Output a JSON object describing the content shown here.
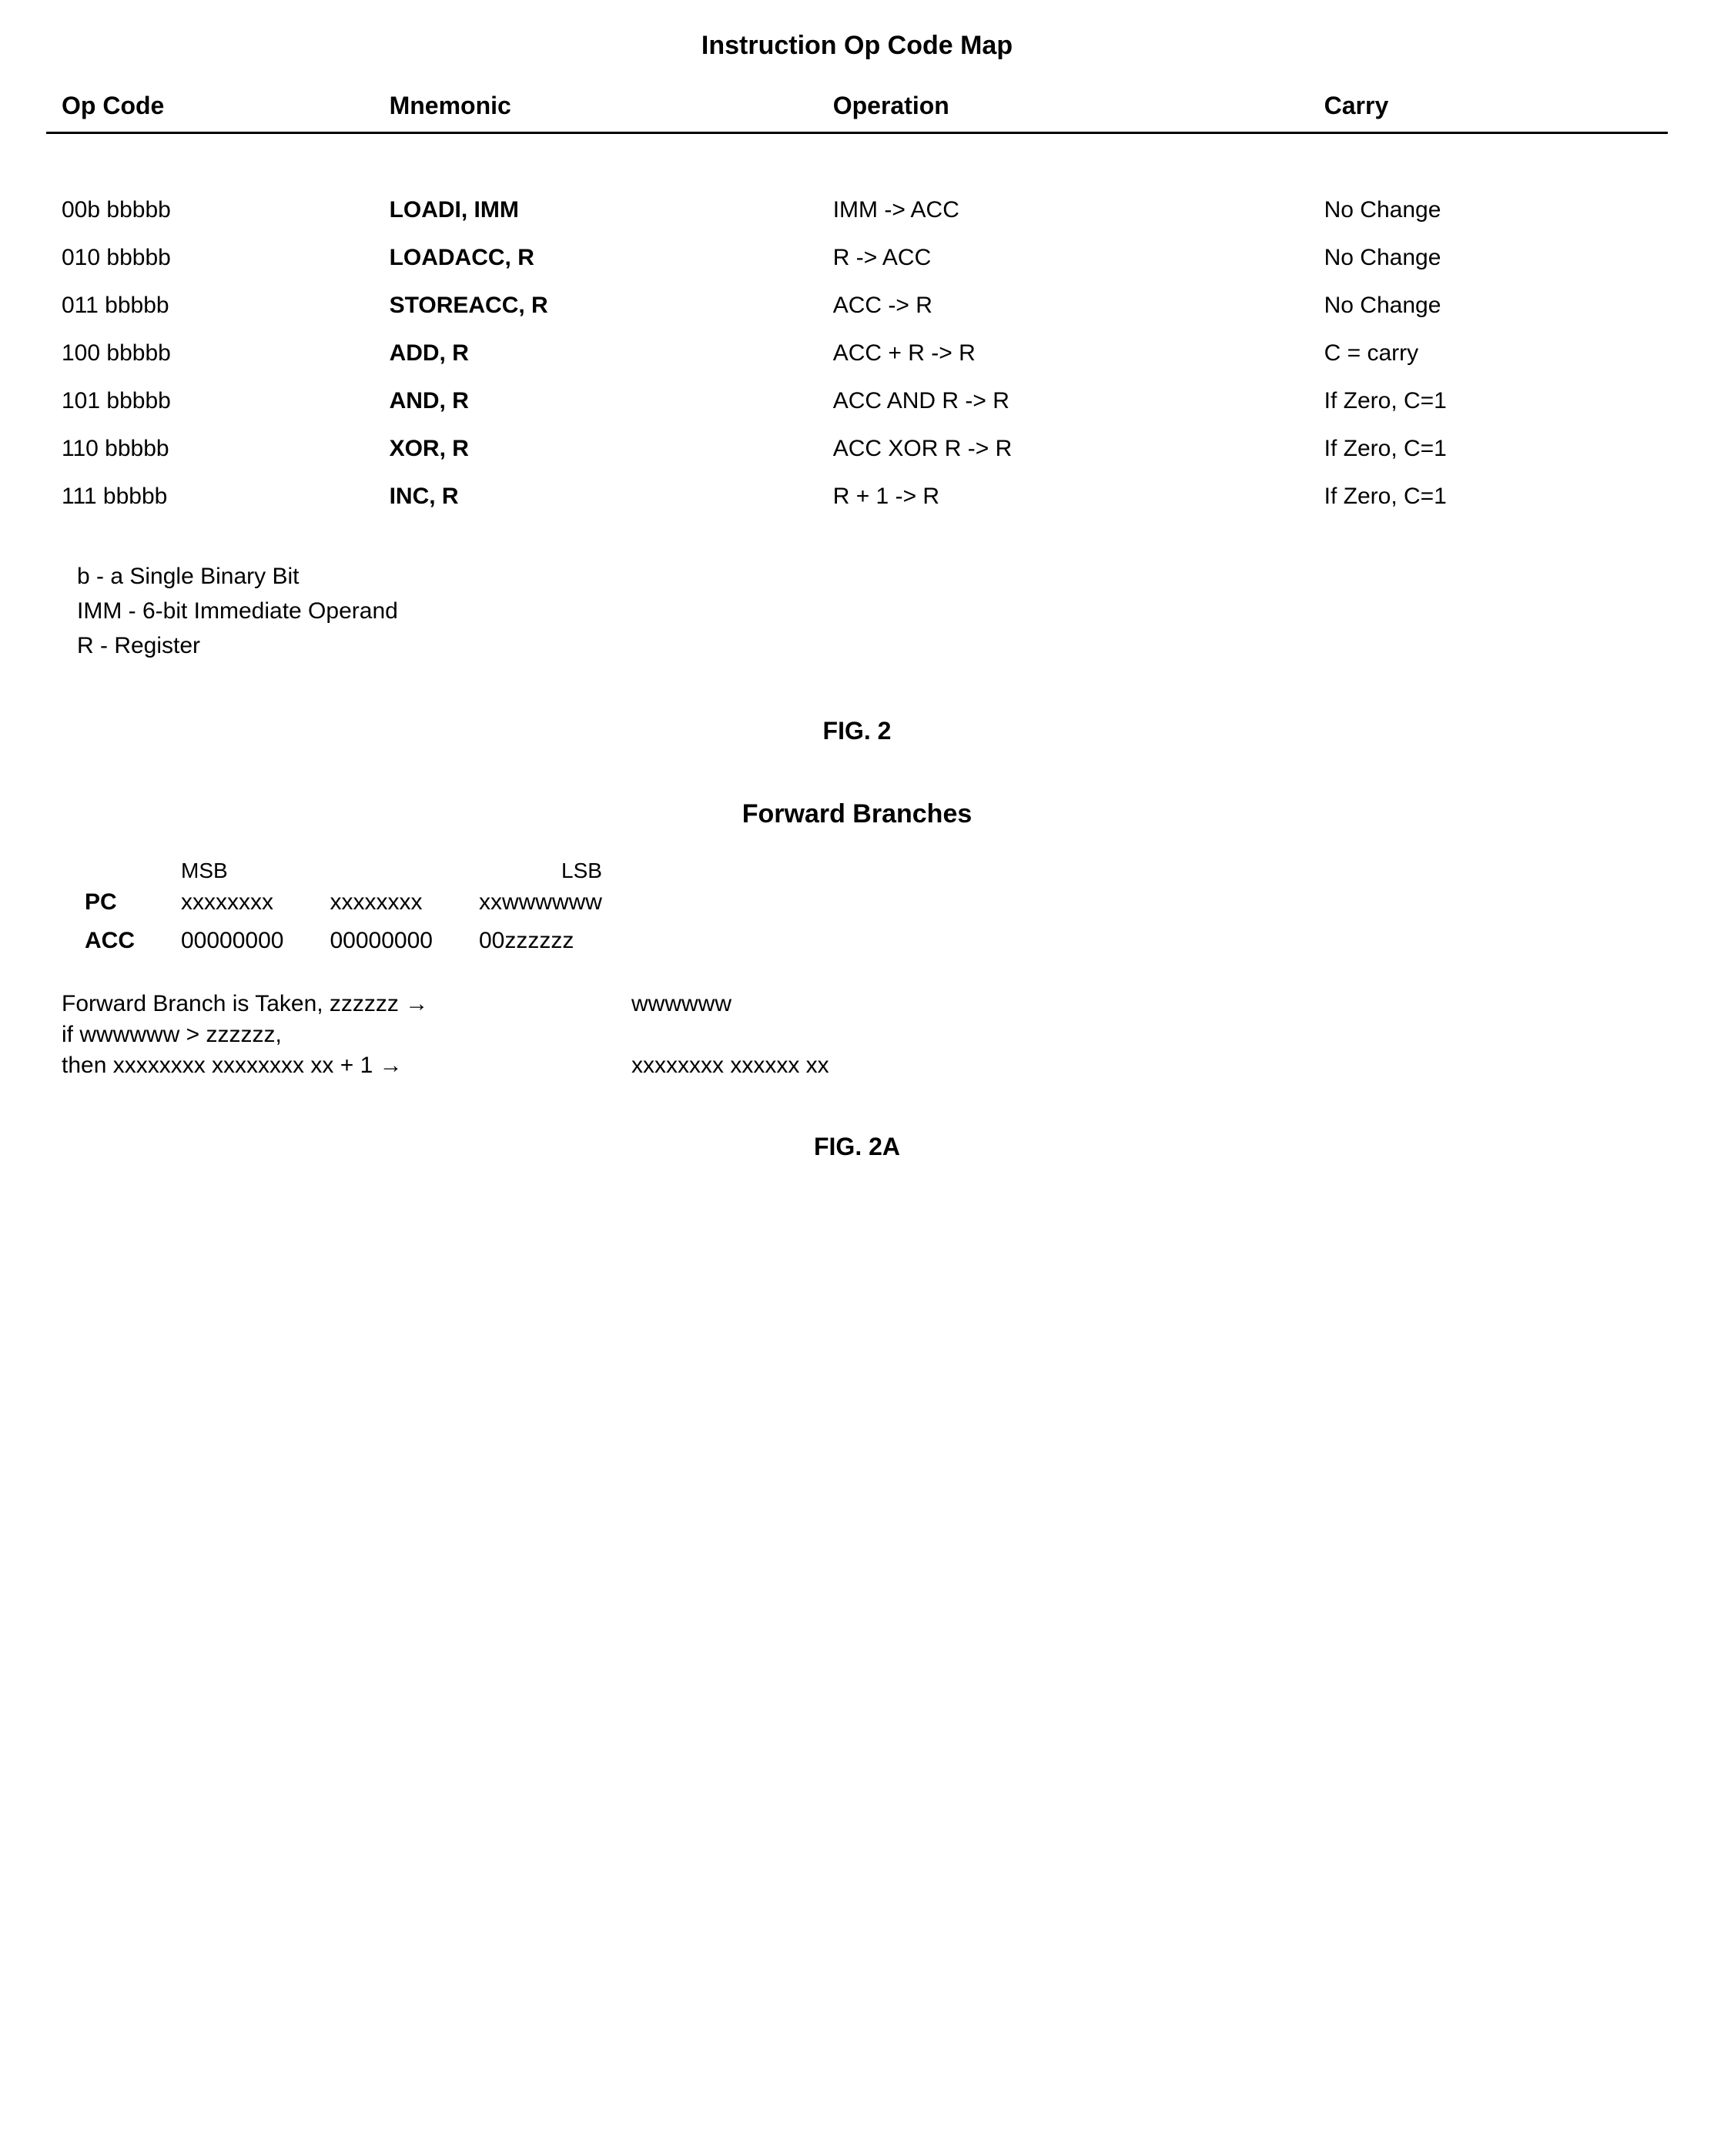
{
  "fig2": {
    "title": "Instruction Op Code Map",
    "columns": [
      "Op Code",
      "Mnemonic",
      "Operation",
      "Carry"
    ],
    "rows": [
      {
        "opcode": "00b bbbbb",
        "mnemonic": "LOADI, IMM",
        "operation": "IMM -> ACC",
        "carry": "No Change"
      },
      {
        "opcode": "010 bbbbb",
        "mnemonic": "LOADACC, R",
        "operation": "R -> ACC",
        "carry": "No Change"
      },
      {
        "opcode": "011 bbbbb",
        "mnemonic": "STOREACC, R",
        "operation": "ACC -> R",
        "carry": "No Change"
      },
      {
        "opcode": "100 bbbbb",
        "mnemonic": "ADD, R",
        "operation": "ACC + R -> R",
        "carry": "C = carry"
      },
      {
        "opcode": "101 bbbbb",
        "mnemonic": "AND, R",
        "operation": "ACC AND R -> R",
        "carry": "If Zero, C=1"
      },
      {
        "opcode": "110 bbbbb",
        "mnemonic": "XOR, R",
        "operation": "ACC XOR R -> R",
        "carry": "If Zero, C=1"
      },
      {
        "opcode": "111 bbbbb",
        "mnemonic": "INC, R",
        "operation": "R + 1 -> R",
        "carry": "If Zero, C=1"
      }
    ],
    "legend": [
      "b - a Single Binary Bit",
      "IMM - 6-bit Immediate Operand",
      "R - Register"
    ],
    "label": "FIG. 2"
  },
  "fig2a": {
    "title": "Forward Branches",
    "bit_labels": {
      "msb": "MSB",
      "lsb": "LSB"
    },
    "pc": {
      "label": "PC",
      "b0": "xxxxxxxx",
      "b1": "xxxxxxxx",
      "b2": "xxwwwwww"
    },
    "acc": {
      "label": "ACC",
      "b0": "00000000",
      "b1": "00000000",
      "b2": "00zzzzzz"
    },
    "line1_left": "Forward Branch is Taken, zzzzzz →",
    "line1_right": "wwwwww",
    "line2_left": "if wwwwww > zzzzzz,",
    "line3_left": "then xxxxxxxx xxxxxxxx xx + 1 →",
    "line3_right": "xxxxxxxx xxxxxx xx",
    "label": "FIG. 2A"
  },
  "style": {
    "background_color": "#ffffff",
    "text_color": "#000000",
    "title_fontsize": 34,
    "header_fontsize": 32,
    "body_fontsize": 30,
    "font_family": "Arial",
    "header_border_width": 3
  }
}
